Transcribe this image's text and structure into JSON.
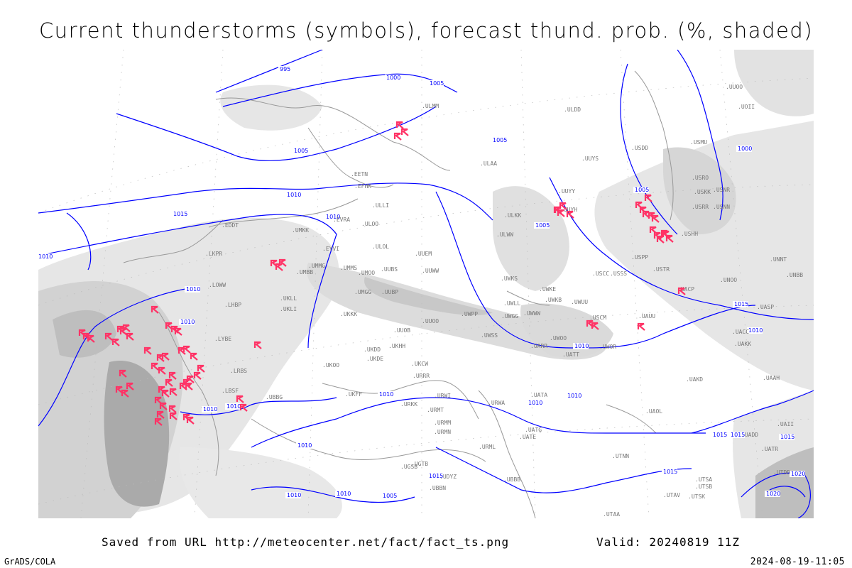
{
  "title": "Current thunderstorms (symbols), forecast thund. prob. (%, shaded)",
  "footer": {
    "saved": "Saved from URL http://meteocenter.net/fact/fact_ts.png",
    "valid": "Valid: 20240819 11Z",
    "software": "GrADS/COLA",
    "timestamp": "2024-08-19-11:05"
  },
  "map": {
    "isobar_color": "#0000ff",
    "thunderstorm_symbol_color": "#ff3366",
    "probability_shading": [
      "#e6e6e6",
      "#d2d2d2",
      "#bebebe",
      "#aaaaaa"
    ],
    "coastline_color": "#999999",
    "contour_labels": [
      "995",
      "1000",
      "1005",
      "1005",
      "1010",
      "1015",
      "1010",
      "1010",
      "1010",
      "1010",
      "1005",
      "1010",
      "1015",
      "1010",
      "1005",
      "1000",
      "1005",
      "1010",
      "1015",
      "1010",
      "1015",
      "1015",
      "1010",
      "1020",
      "1010",
      "1015",
      "1010",
      "1010",
      "1010",
      "1005",
      "1010",
      "1015",
      "1020"
    ],
    "stations": [
      "ULMM",
      "ULAA",
      "EFHK",
      "EETN",
      "ULLI",
      "EVRA",
      "ULOO",
      "ULOL",
      "EDDT",
      "UMKK",
      "EYVI",
      "UMMG",
      "UMBB",
      "LKPR",
      "LOWW",
      "LHBP",
      "UKLL",
      "UKLI",
      "UUEM",
      "UUWW",
      "UMMS",
      "UMOO",
      "UUBS",
      "UMGG",
      "UUBP",
      "UKKK",
      "UUOO",
      "UUOB",
      "UKHH",
      "UKDD",
      "UKDE",
      "UKCW",
      "URRR",
      "UKOO",
      "URWI",
      "URMT",
      "URMM",
      "URMN",
      "UKFF",
      "URKK",
      "UBBG",
      "LBSF",
      "LYBE",
      "LRBS",
      "UGTB",
      "UGSB",
      "UDYZ",
      "UBBN",
      "UBBB",
      "URML",
      "UATE",
      "UATG",
      "URWA",
      "UATA",
      "UAOL",
      "UACC",
      "UAKK",
      "UASP",
      "UAKD",
      "UADD",
      "UTAA",
      "UTSA",
      "UTSB",
      "UTAV",
      "UTSK",
      "UTNN",
      "UWOO",
      "UWPP",
      "UWSS",
      "UWKS",
      "UWKE",
      "UWKB",
      "UWUU",
      "UWWW",
      "UWGG",
      "UWLL",
      "UARR",
      "UWOR",
      "UATT",
      "USCM",
      "UAUU",
      "USCC",
      "USSS",
      "USPP",
      "USTR",
      "USHH",
      "USRR",
      "USKK",
      "USNR",
      "USNN",
      "USRO",
      "USMU",
      "UUYY",
      "UUYH",
      "ULKK",
      "ULWW",
      "UUYS",
      "ULDD",
      "USDD",
      "UUOO",
      "UOII",
      "UACP",
      "UNNT",
      "UNBB",
      "UNOO",
      "UAAH",
      "UAII",
      "UATR",
      "UTDD"
    ]
  }
}
